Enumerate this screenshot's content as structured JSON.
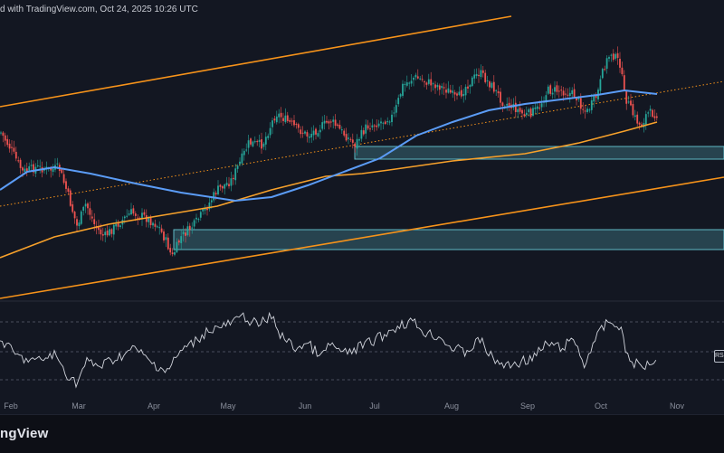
{
  "header": {
    "text": "d with TradingView.com, Oct 24, 2025 10:26 UTC"
  },
  "footer": {
    "brand": "ngView"
  },
  "rsi_tag": "RS",
  "colors": {
    "background": "#131722",
    "candle_up": "#26a69a",
    "candle_down": "#ef5350",
    "ma_fast": "#5b9cf6",
    "ma_slow": "#f7a12b",
    "channel": "#f7931a",
    "zone": "#5fb8c4",
    "rsi": "#d1d4dc"
  },
  "chart_data": [
    {
      "type": "candlestick",
      "title": "",
      "x_axis": {
        "ticks": [
          "Feb",
          "Mar",
          "Apr",
          "May",
          "Jun",
          "Jul",
          "Aug",
          "Sep",
          "Oct",
          "Nov"
        ]
      },
      "y_axis_visible": false,
      "description_series": [
        "price candles",
        "100-day MA (blue)",
        "200-day MA (orange)"
      ],
      "channel_lines": 3,
      "support_zones": 2,
      "grid": false
    },
    {
      "type": "line",
      "title": "",
      "series": [
        {
          "name": "RS",
          "values": []
        }
      ],
      "reference_levels": [
        70,
        50,
        30
      ],
      "grid": false
    }
  ]
}
